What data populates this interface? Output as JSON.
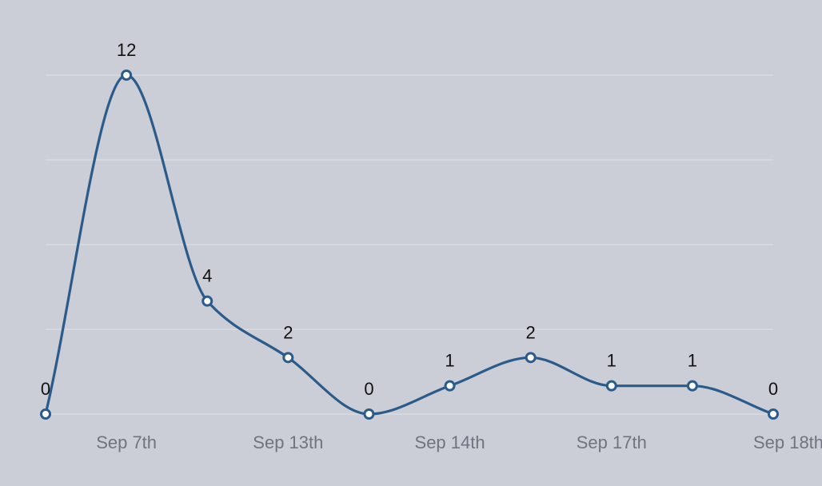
{
  "chart_data": {
    "type": "line",
    "x": [
      "",
      "Sep 7th",
      "",
      "Sep 13th",
      "",
      "Sep 14th",
      "",
      "Sep 17th",
      "",
      "Sep 18th"
    ],
    "series": [
      {
        "values": [
          0,
          12,
          4,
          2,
          0,
          1,
          2,
          1,
          1,
          0
        ]
      }
    ],
    "ylim": [
      0,
      12
    ],
    "grid": true,
    "show_data_labels": true,
    "smooth": true
  },
  "colors": {
    "background": "#cbced6",
    "line": "#2b5b8a",
    "gridline": "#dcdee4",
    "tick_text": "#6f7480",
    "label_text": "#111111"
  }
}
